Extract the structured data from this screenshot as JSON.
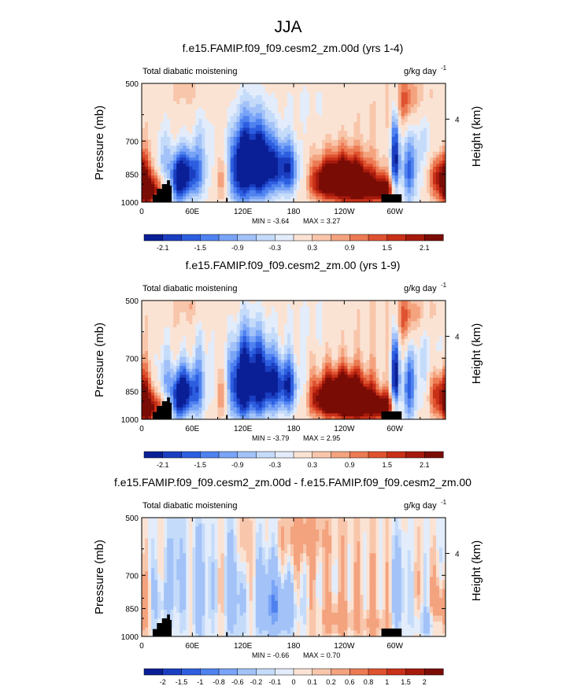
{
  "figure_title": "JJA",
  "chart_data": [
    {
      "type": "heatmap",
      "title": "f.e15.FAMIP.f09_f09.cesm2_zm.00d (yrs 1-4)",
      "left_label": "Total diabatic moistening",
      "units_base": "g/kg day",
      "units_exp": "-1",
      "ylabel": "Pressure (mb)",
      "y2label": "Height (km)",
      "y2ticks": [
        "4"
      ],
      "yticks": [
        "500",
        "700",
        "850",
        "1000"
      ],
      "xticks": [
        "0",
        "60E",
        "120E",
        "180",
        "120W",
        "60W"
      ],
      "ylim": [
        1000,
        500
      ],
      "xlim": [
        0,
        360
      ],
      "min_text": "MIN = -3.64",
      "max_text": "MAX = 3.27",
      "min_value": -3.64,
      "max_value": 3.27,
      "colorbar_labels": [
        "-2.1",
        "-1.5",
        "-0.9",
        "-0.3",
        "0.3",
        "0.9",
        "1.5",
        "2.1"
      ]
    },
    {
      "type": "heatmap",
      "title": "f.e15.FAMIP.f09_f09.cesm2_zm.00 (yrs 1-9)",
      "left_label": "Total diabatic moistening",
      "units_base": "g/kg day",
      "units_exp": "-1",
      "ylabel": "Pressure (mb)",
      "y2label": "Height (km)",
      "y2ticks": [
        "4"
      ],
      "yticks": [
        "500",
        "700",
        "850",
        "1000"
      ],
      "xticks": [
        "0",
        "60E",
        "120E",
        "180",
        "120W",
        "60W"
      ],
      "ylim": [
        1000,
        500
      ],
      "xlim": [
        0,
        360
      ],
      "min_text": "MIN = -3.79",
      "max_text": "MAX = 2.95",
      "min_value": -3.79,
      "max_value": 2.95,
      "colorbar_labels": [
        "-2.1",
        "-1.5",
        "-0.9",
        "-0.3",
        "0.3",
        "0.9",
        "1.5",
        "2.1"
      ]
    },
    {
      "type": "heatmap",
      "title": "f.e15.FAMIP.f09_f09.cesm2_zm.00d - f.e15.FAMIP.f09_f09.cesm2_zm.00",
      "left_label": "Total diabatic moistening",
      "units_base": "g/kg day",
      "units_exp": "-1",
      "ylabel": "Pressure (mb)",
      "y2label": "Height (km)",
      "y2ticks": [
        "4"
      ],
      "yticks": [
        "500",
        "700",
        "850",
        "1000"
      ],
      "xticks": [
        "0",
        "60E",
        "120E",
        "180",
        "120W",
        "60W"
      ],
      "ylim": [
        1000,
        500
      ],
      "xlim": [
        0,
        360
      ],
      "min_text": "MIN = -0.66",
      "max_text": "MAX = 0.70",
      "min_value": -0.66,
      "max_value": 0.7,
      "colorbar_labels": [
        "-2",
        "-1.5",
        "-1",
        "-0.8",
        "-0.6",
        "-0.2",
        "-0.1",
        "0",
        "0.1",
        "0.2",
        "0.6",
        "0.8",
        "1",
        "1.5",
        "2"
      ]
    }
  ],
  "colors": {
    "palette16": [
      "#0a1f96",
      "#1b3ec0",
      "#2d5ee0",
      "#4f82ef",
      "#79a4f7",
      "#a2c2f8",
      "#c5dbfa",
      "#e2ecfb",
      "#fbe3d4",
      "#f8c6ab",
      "#f4a37f",
      "#ec7b54",
      "#df5230",
      "#c83018",
      "#a51a0c",
      "#7a0c06"
    ],
    "topography": "#000000",
    "frame": "#000000"
  }
}
